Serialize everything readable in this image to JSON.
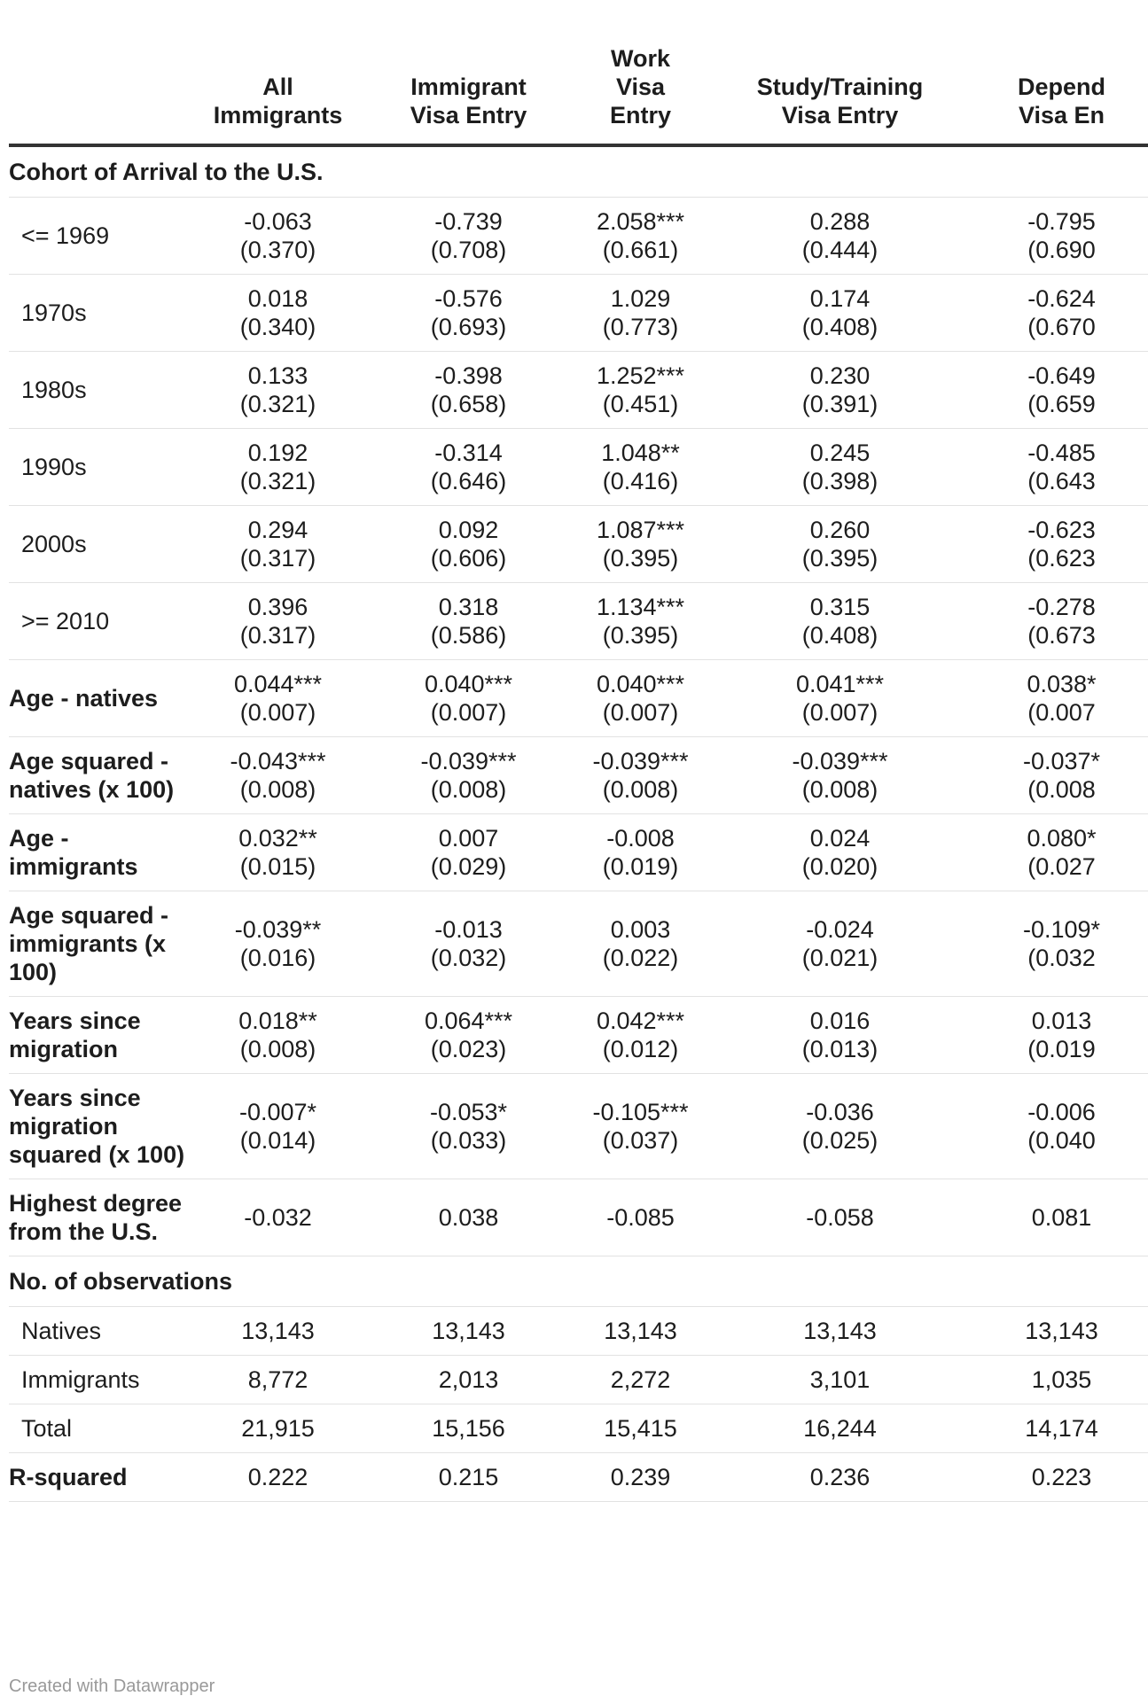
{
  "headers": [
    {
      "lines": [
        ""
      ]
    },
    {
      "lines": [
        "All",
        "Immigrants"
      ]
    },
    {
      "lines": [
        "Immigrant",
        "Visa Entry"
      ]
    },
    {
      "lines": [
        "Work",
        "Visa",
        "Entry"
      ]
    },
    {
      "lines": [
        "Study/Training",
        "Visa Entry"
      ]
    },
    {
      "lines": [
        "Depend",
        "Visa En"
      ]
    }
  ],
  "rows": [
    {
      "kind": "section",
      "label": "Cohort of Arrival to the U.S."
    },
    {
      "kind": "sub",
      "label": "<= 1969",
      "cells": [
        [
          "-0.063",
          "(0.370)"
        ],
        [
          "-0.739",
          "(0.708)"
        ],
        [
          "2.058***",
          "(0.661)"
        ],
        [
          "0.288",
          "(0.444)"
        ],
        [
          "-0.795",
          "(0.690"
        ]
      ]
    },
    {
      "kind": "sub",
      "label": "1970s",
      "cells": [
        [
          "0.018",
          "(0.340)"
        ],
        [
          "-0.576",
          "(0.693)"
        ],
        [
          "1.029",
          "(0.773)"
        ],
        [
          "0.174",
          "(0.408)"
        ],
        [
          "-0.624",
          "(0.670"
        ]
      ]
    },
    {
      "kind": "sub",
      "label": "1980s",
      "cells": [
        [
          "0.133",
          "(0.321)"
        ],
        [
          "-0.398",
          "(0.658)"
        ],
        [
          "1.252***",
          "(0.451)"
        ],
        [
          "0.230",
          "(0.391)"
        ],
        [
          "-0.649",
          "(0.659"
        ]
      ]
    },
    {
      "kind": "sub",
      "label": "1990s",
      "cells": [
        [
          "0.192",
          "(0.321)"
        ],
        [
          "-0.314",
          "(0.646)"
        ],
        [
          "1.048**",
          "(0.416)"
        ],
        [
          "0.245",
          "(0.398)"
        ],
        [
          "-0.485",
          "(0.643"
        ]
      ]
    },
    {
      "kind": "sub",
      "label": "2000s",
      "cells": [
        [
          "0.294",
          "(0.317)"
        ],
        [
          "0.092",
          "(0.606)"
        ],
        [
          "1.087***",
          "(0.395)"
        ],
        [
          "0.260",
          "(0.395)"
        ],
        [
          "-0.623",
          "(0.623"
        ]
      ]
    },
    {
      "kind": "sub",
      "label": ">= 2010",
      "cells": [
        [
          "0.396",
          "(0.317)"
        ],
        [
          "0.318",
          "(0.586)"
        ],
        [
          "1.134***",
          "(0.395)"
        ],
        [
          "0.315",
          "(0.408)"
        ],
        [
          "-0.278",
          "(0.673"
        ]
      ]
    },
    {
      "kind": "lab",
      "label": "Age - natives",
      "cells": [
        [
          "0.044***",
          "(0.007)"
        ],
        [
          "0.040***",
          "(0.007)"
        ],
        [
          "0.040***",
          "(0.007)"
        ],
        [
          "0.041***",
          "(0.007)"
        ],
        [
          "0.038*",
          "(0.007"
        ]
      ]
    },
    {
      "kind": "lab",
      "label": "Age squared - natives (x 100)",
      "cells": [
        [
          "-0.043***",
          "(0.008)"
        ],
        [
          "-0.039***",
          "(0.008)"
        ],
        [
          "-0.039***",
          "(0.008)"
        ],
        [
          "-0.039***",
          "(0.008)"
        ],
        [
          "-0.037*",
          "(0.008"
        ]
      ]
    },
    {
      "kind": "lab",
      "label": "Age - immigrants",
      "cells": [
        [
          "0.032**",
          "(0.015)"
        ],
        [
          "0.007",
          "(0.029)"
        ],
        [
          "-0.008",
          "(0.019)"
        ],
        [
          "0.024",
          "(0.020)"
        ],
        [
          "0.080*",
          "(0.027"
        ]
      ]
    },
    {
      "kind": "lab",
      "label": "Age squared - immigrants (x 100)",
      "cells": [
        [
          "-0.039**",
          "(0.016)"
        ],
        [
          "-0.013",
          "(0.032)"
        ],
        [
          "0.003",
          "(0.022)"
        ],
        [
          "-0.024",
          "(0.021)"
        ],
        [
          "-0.109*",
          "(0.032"
        ]
      ]
    },
    {
      "kind": "lab",
      "label": "Years since migration",
      "cells": [
        [
          "0.018**",
          "(0.008)"
        ],
        [
          "0.064***",
          "(0.023)"
        ],
        [
          "0.042***",
          "(0.012)"
        ],
        [
          "0.016",
          "(0.013)"
        ],
        [
          "0.013",
          "(0.019"
        ]
      ]
    },
    {
      "kind": "lab",
      "label": "Years since migration squared (x 100)",
      "cells": [
        [
          "-0.007*",
          "(0.014)"
        ],
        [
          "-0.053*",
          "(0.033)"
        ],
        [
          "-0.105***",
          "(0.037)"
        ],
        [
          "-0.036",
          "(0.025)"
        ],
        [
          "-0.006",
          "(0.040"
        ]
      ]
    },
    {
      "kind": "lab",
      "label": "Highest degree from the U.S.",
      "cells": [
        [
          "-0.032"
        ],
        [
          "0.038"
        ],
        [
          "-0.085"
        ],
        [
          "-0.058"
        ],
        [
          "0.081"
        ]
      ]
    },
    {
      "kind": "section",
      "label": "No. of observations"
    },
    {
      "kind": "sub",
      "label": "Natives",
      "cells": [
        [
          "13,143"
        ],
        [
          "13,143"
        ],
        [
          "13,143"
        ],
        [
          "13,143"
        ],
        [
          "13,143"
        ]
      ]
    },
    {
      "kind": "sub",
      "label": "Immigrants",
      "cells": [
        [
          "8,772"
        ],
        [
          "2,013"
        ],
        [
          "2,272"
        ],
        [
          "3,101"
        ],
        [
          "1,035"
        ]
      ]
    },
    {
      "kind": "sub",
      "label": "Total",
      "cells": [
        [
          "21,915"
        ],
        [
          "15,156"
        ],
        [
          "15,415"
        ],
        [
          "16,244"
        ],
        [
          "14,174"
        ]
      ]
    },
    {
      "kind": "lab",
      "label": "R-squared",
      "cells": [
        [
          "0.222"
        ],
        [
          "0.215"
        ],
        [
          "0.239"
        ],
        [
          "0.236"
        ],
        [
          "0.223"
        ]
      ]
    }
  ],
  "footer": "Created with Datawrapper"
}
